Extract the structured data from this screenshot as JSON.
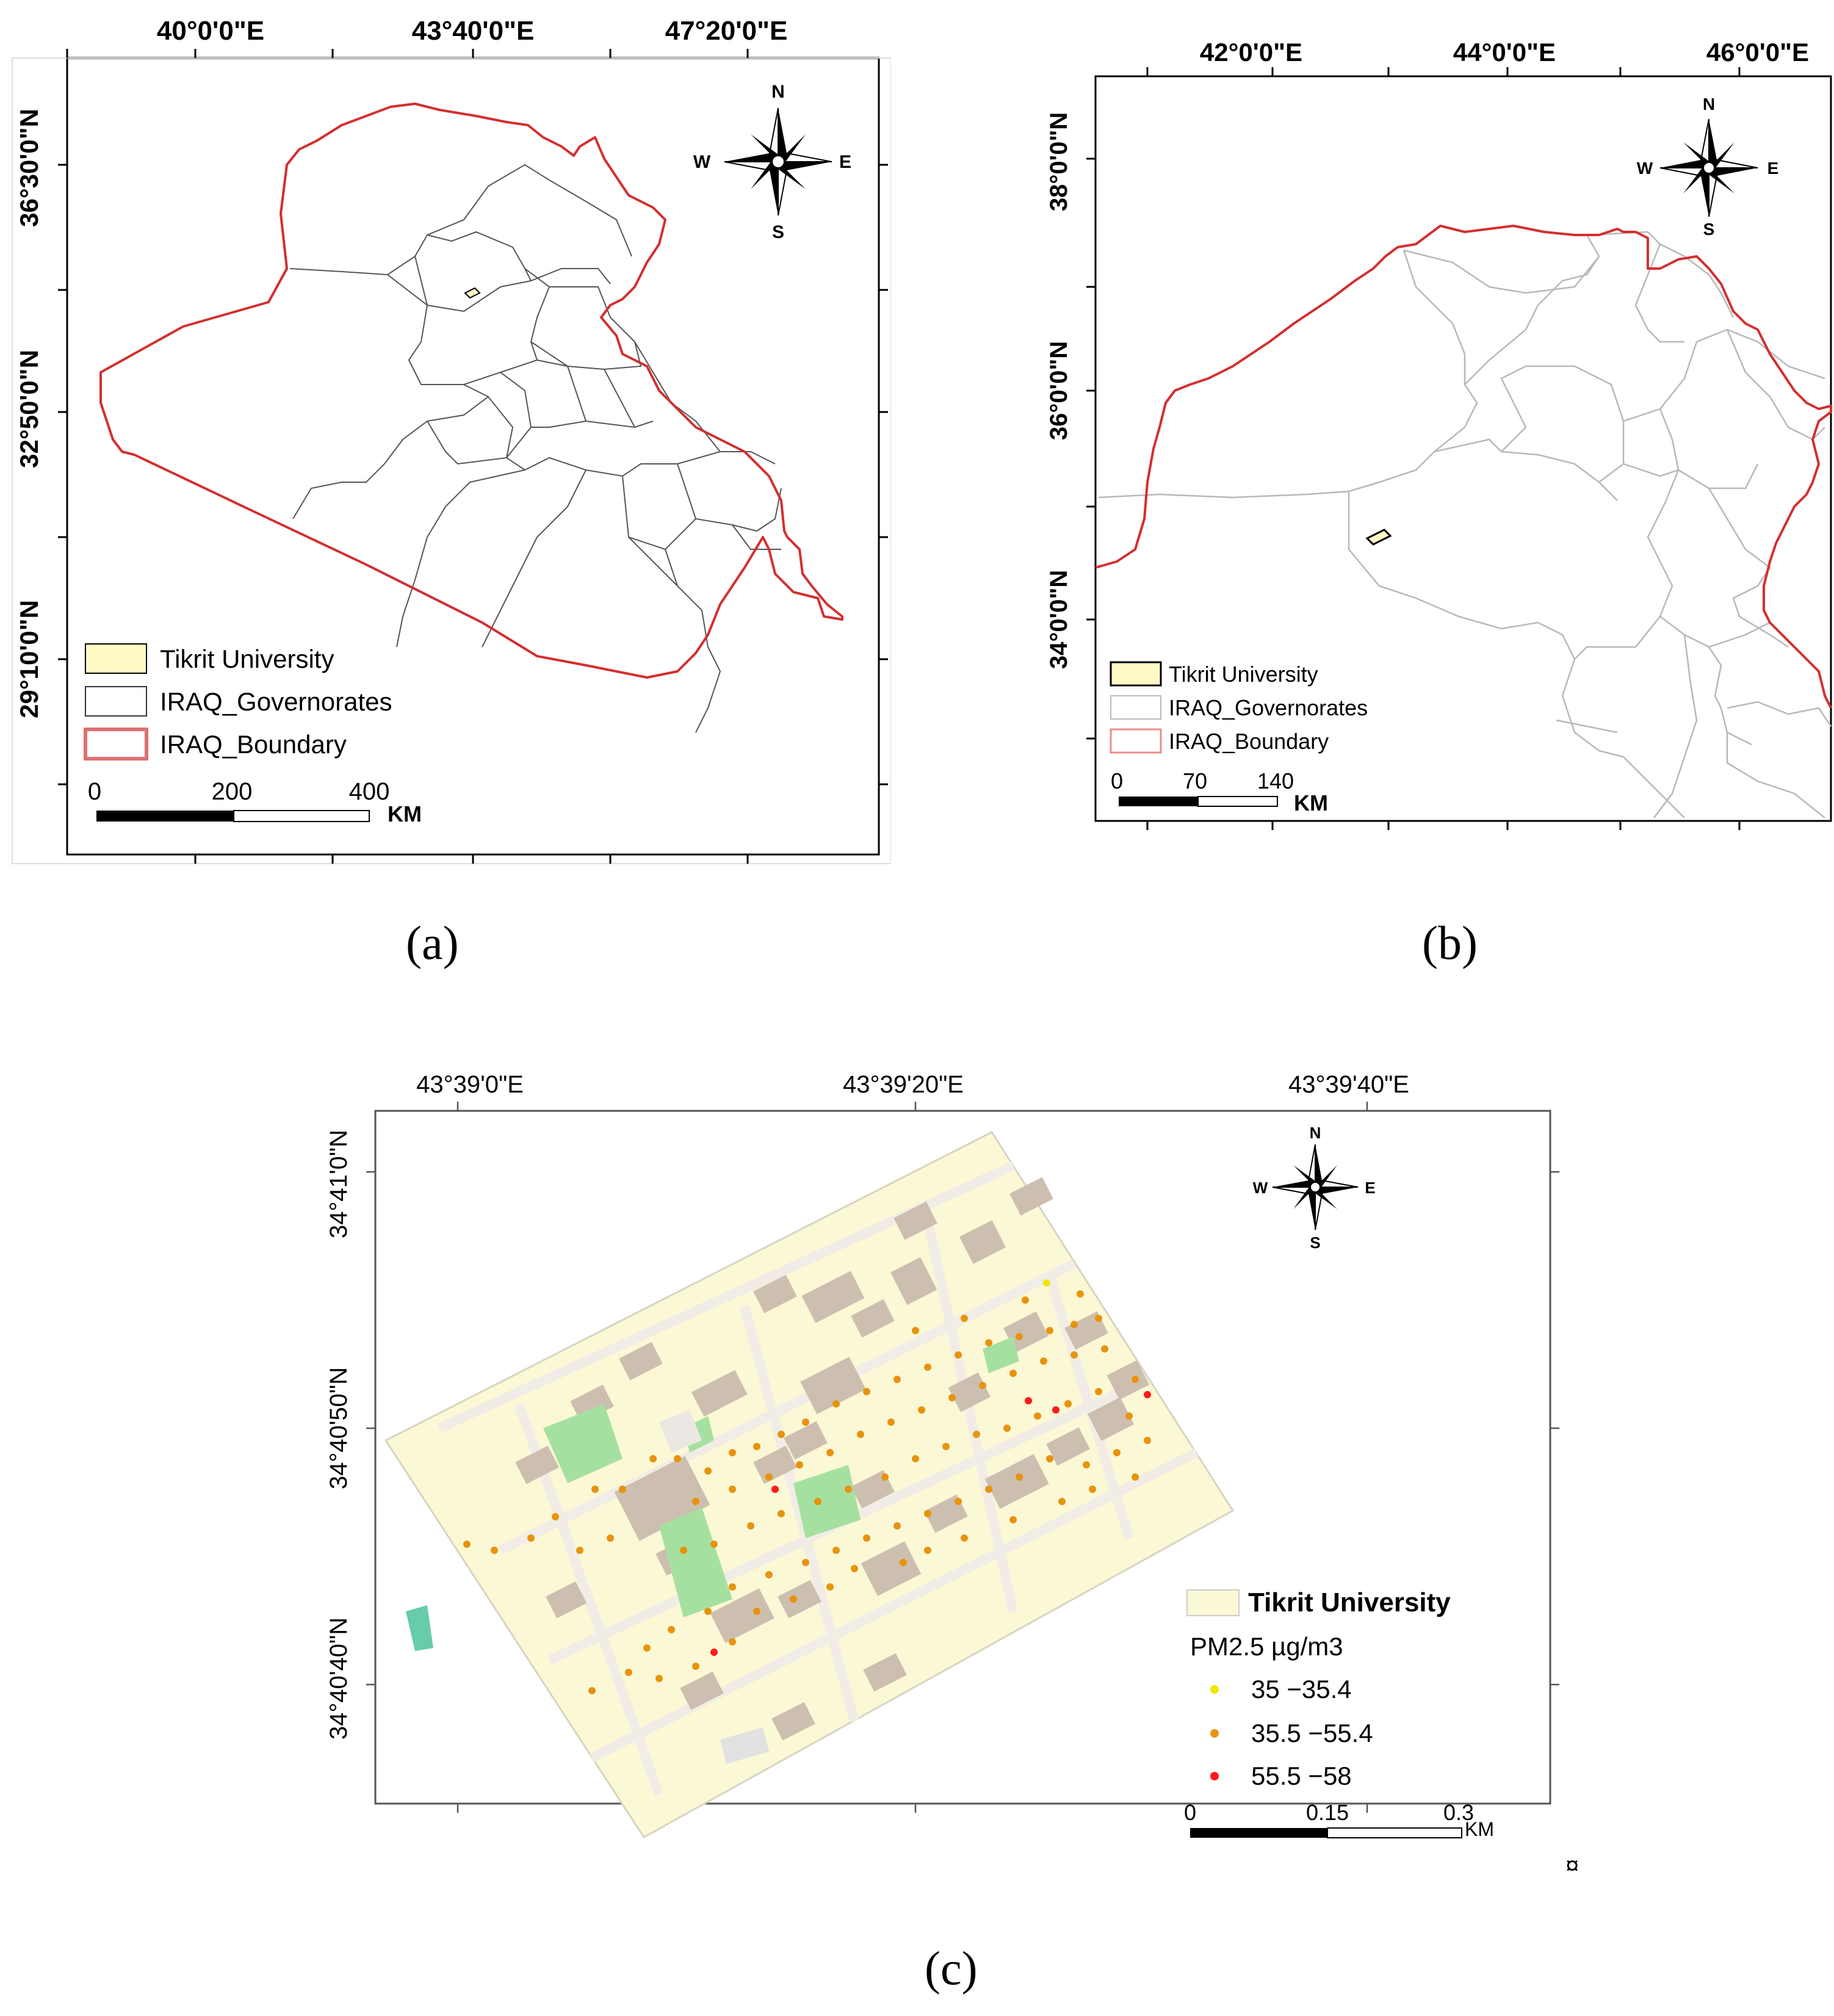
{
  "panel_a": {
    "caption": "(a)",
    "top_labels": [
      "40°0'0\"E",
      "43°40'0\"E",
      "47°20'0\"E"
    ],
    "left_labels": [
      "36°30'0\"N",
      "32°50'0\"N",
      "29°10'0\"N"
    ],
    "compass": {
      "n": "N",
      "s": "S",
      "e": "E",
      "w": "W"
    },
    "legend": [
      "Tikrit University",
      "IRAQ_Governorates",
      "IRAQ_Boundary"
    ],
    "scale": {
      "ticks": [
        "0",
        "200",
        "400"
      ],
      "unit": "KM"
    }
  },
  "panel_b": {
    "caption": "(b)",
    "top_labels": [
      "42°0'0\"E",
      "44°0'0\"E",
      "46°0'0\"E"
    ],
    "left_labels": [
      "38°0'0\"N",
      "36°0'0\"N",
      "34°0'0\"N"
    ],
    "compass": {
      "n": "N",
      "s": "S",
      "e": "E",
      "w": "W"
    },
    "legend": [
      "Tikrit University",
      "IRAQ_Governorates",
      "IRAQ_Boundary"
    ],
    "scale": {
      "ticks": [
        "0",
        "70",
        "140"
      ],
      "unit": "KM"
    }
  },
  "panel_c": {
    "caption": "(c)",
    "top_labels": [
      "43°39'0\"E",
      "43°39'20\"E",
      "43°39'40\"E"
    ],
    "left_labels": [
      "34°41'0\"N",
      "34°40'50\"N",
      "34°40'40\"N"
    ],
    "compass": {
      "n": "N",
      "s": "S",
      "e": "E",
      "w": "W"
    },
    "legend_title": "Tikrit University",
    "pm_title": "PM2.5  µg/m3",
    "classes": [
      {
        "label": "35 −35.4",
        "color": "#f2e600"
      },
      {
        "label": "35.5 −55.4",
        "color": "#e8930f"
      },
      {
        "label": "55.5 −58",
        "color": "#ff1a1a"
      }
    ],
    "scale": {
      "ticks": [
        "0",
        "0.15",
        "0.3"
      ],
      "unit": "KM"
    },
    "corner_symbol": "¤"
  },
  "colors": {
    "boundary": "#d32f2f",
    "gov_a": "#444444",
    "gov_b": "#b8b8b8",
    "campus": "#fbf8d5",
    "building": "#cdbfb0",
    "green": "#a6e0a0"
  }
}
